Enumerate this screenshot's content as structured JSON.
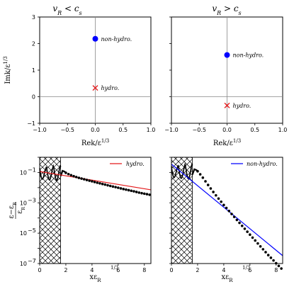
{
  "chart_data": [
    {
      "type": "scatter",
      "title": "v_R < c_s",
      "title_parts": [
        "v",
        "R",
        " < c",
        "s"
      ],
      "xlabel_parts": [
        "Rek/ε",
        "1/3"
      ],
      "ylabel_parts": [
        "Imk/ε",
        "1/3"
      ],
      "xlim": [
        -1.0,
        1.0
      ],
      "ylim": [
        -1,
        3
      ],
      "xticks": [
        "−1.0",
        "−0.5",
        "0.0",
        "0.5",
        "1.0"
      ],
      "yticks": [
        "−1",
        "0",
        "1",
        "2",
        "3"
      ],
      "points": [
        {
          "label": "non-hydro.",
          "x": 0.0,
          "y": 2.18,
          "marker": "circle",
          "color": "#0000ff"
        },
        {
          "label": "hydro.",
          "x": 0.0,
          "y": 0.33,
          "marker": "x",
          "color": "#e41a1c"
        }
      ]
    },
    {
      "type": "scatter",
      "title": "v_R > c_s",
      "title_parts": [
        "v",
        "R",
        " > c",
        "s"
      ],
      "xlabel_parts": [
        "Rek/ε",
        "1/3"
      ],
      "xlim": [
        -1.0,
        1.0
      ],
      "ylim": [
        -1,
        3
      ],
      "xticks": [
        "−1.0",
        "−0.5",
        "0.0",
        "0.5",
        "1.0"
      ],
      "points": [
        {
          "label": "non-hydro.",
          "x": 0.0,
          "y": 1.57,
          "marker": "circle",
          "color": "#0000ff"
        },
        {
          "label": "hydro.",
          "x": 0.0,
          "y": -0.33,
          "marker": "x",
          "color": "#e41a1c"
        }
      ]
    },
    {
      "type": "line",
      "yscale": "log",
      "xlabel_parts": [
        "xε",
        "R",
        "1/3"
      ],
      "ylabel_parts": [
        "ε−ε",
        "R",
        "ε",
        "R"
      ],
      "xlim": [
        0,
        8.5
      ],
      "ylim": [
        1e-07,
        1
      ],
      "xticks": [
        "0",
        "2",
        "4",
        "6",
        "8"
      ],
      "yticks": [
        "10",
        "10",
        "10",
        "10"
      ],
      "ytick_exponents": [
        "−7",
        "−5",
        "−3",
        "−1"
      ],
      "hatched_region": [
        0,
        1.6
      ],
      "legend": {
        "label": "hydro.",
        "color": "#e41a1c",
        "position": "top-right"
      },
      "fit_line": {
        "x": [
          0,
          8.5
        ],
        "y": [
          0.115,
          0.0072
        ],
        "color": "#e41a1c"
      },
      "data_points": {
        "x": [
          2.0,
          2.2,
          2.4,
          2.6,
          2.8,
          3.0,
          3.2,
          3.4,
          3.6,
          3.8,
          4.0,
          4.2,
          4.4,
          4.6,
          4.8,
          5.0,
          5.2,
          5.4,
          5.6,
          5.8,
          6.0,
          6.2,
          6.4,
          6.6,
          6.8,
          7.0,
          7.2,
          7.4,
          7.6,
          7.8,
          8.0,
          8.2,
          8.4
        ],
        "y": [
          0.095,
          0.078,
          0.066,
          0.057,
          0.05,
          0.044,
          0.0395,
          0.0355,
          0.032,
          0.0288,
          0.026,
          0.0235,
          0.0212,
          0.0192,
          0.0174,
          0.0158,
          0.0143,
          0.013,
          0.0118,
          0.0108,
          0.0098,
          0.0089,
          0.0081,
          0.0074,
          0.0068,
          0.0062,
          0.0057,
          0.0052,
          0.0047,
          0.0043,
          0.004,
          0.0037,
          0.0034
        ]
      }
    },
    {
      "type": "line",
      "yscale": "log",
      "xlabel_parts": [
        "xε",
        "R",
        "1/3"
      ],
      "xlim": [
        0,
        8.5
      ],
      "ylim": [
        1e-07,
        1
      ],
      "xticks": [
        "0",
        "2",
        "4",
        "6",
        "8"
      ],
      "hatched_region": [
        0,
        1.6
      ],
      "legend": {
        "label": "non-hydro.",
        "color": "#0000ff",
        "position": "top-right"
      },
      "fit_line": {
        "x": [
          0,
          8.5
        ],
        "y": [
          0.35,
          3.3e-07
        ],
        "color": "#0000ff"
      },
      "data_points": {
        "x": [
          2.0,
          2.2,
          2.4,
          2.6,
          2.8,
          3.0,
          3.2,
          3.4,
          3.6,
          3.8,
          4.0,
          4.2,
          4.4,
          4.6,
          4.8,
          5.0,
          5.2,
          5.4,
          5.6,
          5.8,
          6.0,
          6.2,
          6.4,
          6.6,
          6.8,
          7.0,
          7.2,
          7.4,
          7.6,
          7.8,
          8.0,
          8.2,
          8.4
        ],
        "y": [
          0.12,
          0.075,
          0.045,
          0.026,
          0.015,
          0.0088,
          0.0052,
          0.0031,
          0.0019,
          0.00118,
          0.00072,
          0.00046,
          0.00029,
          0.000185,
          0.000118,
          7.5e-05,
          4.8e-05,
          3.05e-05,
          1.95e-05,
          1.25e-05,
          8e-06,
          5.1e-06,
          3.3e-06,
          2.1e-06,
          1.35e-06,
          8.7e-07,
          5.6e-07,
          3.6e-07,
          2.4e-07,
          1.6e-07,
          1.05e-07,
          7e-08,
          4.7e-08
        ]
      }
    }
  ]
}
